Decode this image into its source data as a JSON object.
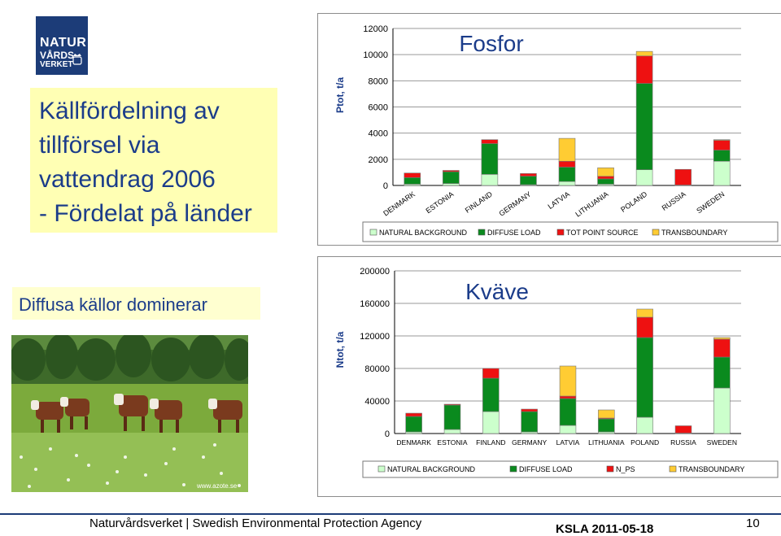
{
  "logo": {
    "line1": "NATUR",
    "line2": "VÅRDS",
    "line3": "VERKET"
  },
  "title": {
    "line1": "Källfördelning av",
    "line2": "tillförsel via",
    "line3": "vattendrag 2006",
    "line4": "- Fördelat på länder"
  },
  "subtitle": "Diffusa källor dominerar",
  "photo": {
    "credit": "www.azote.se"
  },
  "footer": {
    "org": "Naturvårdsverket | Swedish Environmental Protection Agency",
    "date": "KSLA 2011-05-18",
    "page": "10"
  },
  "colors": {
    "natural": "#ccffcc",
    "diffuse": "#0a8a1e",
    "point": "#ee1111",
    "transboundary": "#ffcc33",
    "brand": "#1c3c78"
  },
  "chart_data": [
    {
      "type": "bar",
      "stacked": true,
      "title": "Fosfor",
      "ylabel": "Ptot, t/a",
      "xlabel": "",
      "ylim": [
        0,
        12000
      ],
      "yticks": [
        "0",
        "2000",
        "4000",
        "6000",
        "8000",
        "10000",
        "12000"
      ],
      "categories": [
        "DENMARK",
        "ESTONIA",
        "FINLAND",
        "GERMANY",
        "LATVIA",
        "LITHUANIA",
        "POLAND",
        "RUSSIA",
        "SWEDEN"
      ],
      "grid": true,
      "legend": "bottom",
      "series": [
        {
          "name": "NATURAL BACKGROUND",
          "color": "#ccffcc",
          "values": [
            100,
            150,
            850,
            60,
            300,
            100,
            1200,
            30,
            1850
          ]
        },
        {
          "name": "DIFFUSE LOAD",
          "color": "#0a8a1e",
          "values": [
            500,
            900,
            2350,
            650,
            1100,
            400,
            6600,
            0,
            850
          ]
        },
        {
          "name": "TOT POINT SOURCE",
          "color": "#ee1111",
          "values": [
            350,
            100,
            300,
            200,
            450,
            200,
            2100,
            1200,
            750
          ]
        },
        {
          "name": "TRANSBOUNDARY",
          "color": "#ffcc33",
          "values": [
            0,
            0,
            0,
            0,
            1750,
            650,
            350,
            0,
            50
          ]
        }
      ]
    },
    {
      "type": "bar",
      "stacked": true,
      "title": "Kväve",
      "ylabel": "Ntot, t/a",
      "xlabel": "",
      "ylim": [
        0,
        200000
      ],
      "yticks": [
        "0",
        "40000",
        "80000",
        "120000",
        "160000",
        "200000"
      ],
      "categories": [
        "DENMARK",
        "ESTONIA",
        "FINLAND",
        "GERMANY",
        "LATVIA",
        "LITHUANIA",
        "POLAND",
        "RUSSIA",
        "SWEDEN"
      ],
      "grid": true,
      "legend": "bottom",
      "series": [
        {
          "name": "NATURAL BACKGROUND",
          "color": "#ccffcc",
          "values": [
            2000,
            5000,
            27000,
            2000,
            10000,
            2000,
            20000,
            500,
            56000
          ]
        },
        {
          "name": "DIFFUSE LOAD",
          "color": "#0a8a1e",
          "values": [
            19000,
            30000,
            41000,
            25000,
            33000,
            16000,
            98000,
            0,
            38000
          ]
        },
        {
          "name": "N_PS",
          "color": "#ee1111",
          "values": [
            4000,
            1000,
            12000,
            3000,
            3000,
            1000,
            25000,
            9000,
            22000
          ]
        },
        {
          "name": "TRANSBOUNDARY",
          "color": "#ffcc33",
          "values": [
            0,
            0,
            0,
            0,
            37000,
            10000,
            10000,
            0,
            2000
          ]
        }
      ]
    }
  ]
}
